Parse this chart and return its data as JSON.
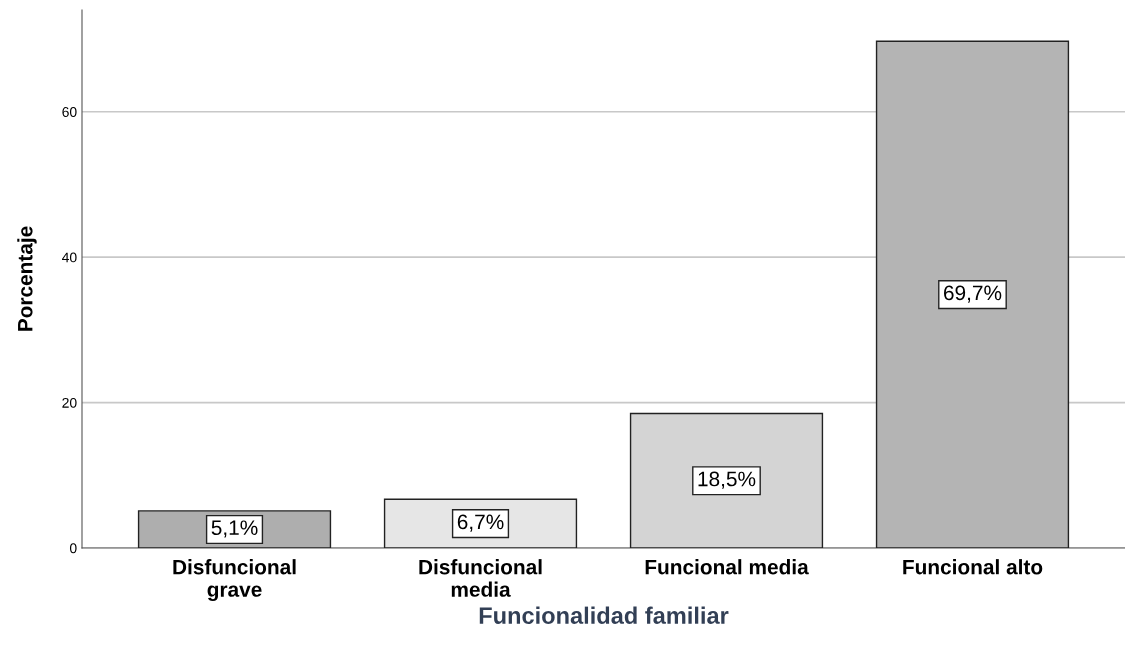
{
  "chart_data": {
    "type": "bar",
    "xlabel": "Funcionalidad familiar",
    "ylabel": "Porcentaje",
    "categories": [
      "Disfuncional\ngrave",
      "Disfuncional\nmedia",
      "Funcional media",
      "Funcional alto"
    ],
    "values": [
      5.1,
      6.7,
      18.5,
      69.7
    ],
    "colors": [
      "#aeaeae",
      "#e6e6e6",
      "#d4d4d4",
      "#b4b4b4"
    ],
    "value_labels": [
      "5,1%",
      "6,7%",
      "18,5%",
      "69,7%"
    ],
    "ylim": [
      0,
      74
    ],
    "yticks": [
      0,
      20,
      40,
      60
    ],
    "grid": "y"
  }
}
